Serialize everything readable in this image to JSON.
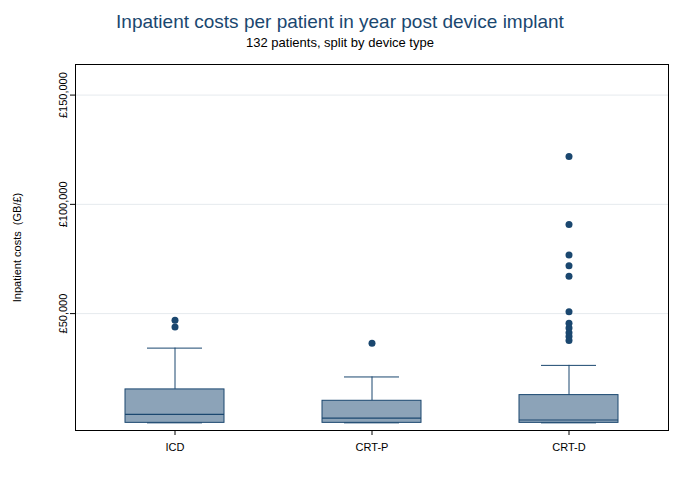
{
  "chart_data": {
    "type": "box",
    "title": "Inpatient costs per patient in year post device implant",
    "subtitle": "132 patients, split by device type",
    "y_label": "Inpatient costs  (GB/£)",
    "categories": [
      "ICD",
      "CRT-P",
      "CRT-D"
    ],
    "boxes": [
      {
        "whisker_low": 0,
        "q1": 0,
        "median": 3900,
        "q3": 15300,
        "whisker_high": 34200,
        "outliers": [
          46900,
          43900
        ]
      },
      {
        "whisker_low": 0,
        "q1": 0,
        "median": 2200,
        "q3": 10100,
        "whisker_high": 21000,
        "outliers": [
          36400
        ]
      },
      {
        "whisker_low": 0,
        "q1": 0,
        "median": 1300,
        "q3": 12700,
        "whisker_high": 26300,
        "outliers": [
          121900,
          90800,
          76800,
          71900,
          67100,
          50900,
          45600,
          43400,
          41200,
          39500,
          37700
        ]
      }
    ],
    "color": "#8ca3b8",
    "ylim": [
      -3500,
      164000
    ],
    "yticks": [
      {
        "value": 50000,
        "label": "£50,000"
      },
      {
        "value": 100000,
        "label": "£100,000"
      },
      {
        "value": 150000,
        "label": "£150,000"
      }
    ],
    "grid": true
  }
}
